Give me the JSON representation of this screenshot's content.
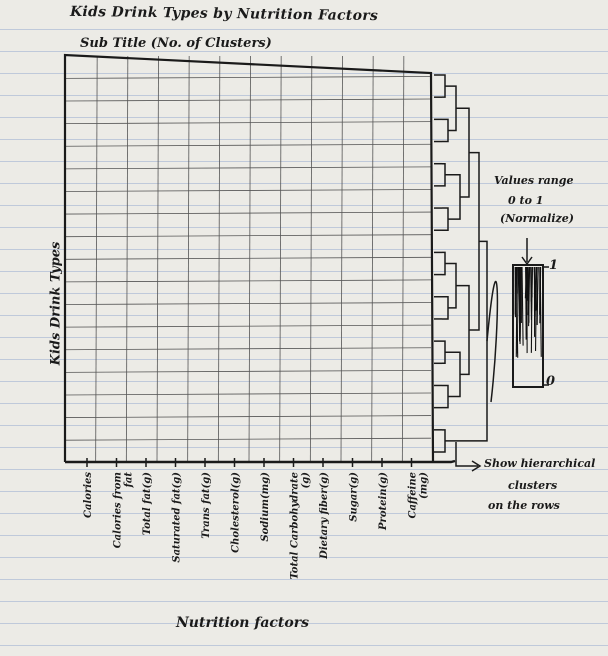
{
  "title": "Kids Drink Types by Nutrition Factors",
  "subtitle": "Sub Title (No. of Clusters)",
  "y_axis_label": "Kids Drink Types",
  "x_axis_title": "Nutrition factors",
  "x_ticks": [
    [
      "Calories"
    ],
    [
      "Calories from",
      "fat"
    ],
    [
      "Total fat(g)"
    ],
    [
      "Saturated fat(g)"
    ],
    [
      "Trans fat(g)"
    ],
    [
      "Cholesterol(g)"
    ],
    [
      "Sodium(mg)"
    ],
    [
      "Total Carbohydrate",
      "(g)"
    ],
    [
      "Dietary fiber(g)"
    ],
    [
      "Sugar(g)"
    ],
    [
      "Protein(g)"
    ],
    [
      "Caffeine",
      "(mg)"
    ]
  ],
  "legend": {
    "note_lines": [
      "Values range",
      "0 to 1",
      "(Normalize)"
    ],
    "max_label": "1",
    "min_label": "0"
  },
  "dendrogram_note_lines": [
    "Show hierarchical",
    "clusters",
    "on the rows"
  ],
  "colors": {
    "ink": "#1a1a1a",
    "paper": "#ecebe6",
    "rule_line": "#b7c3d8"
  }
}
